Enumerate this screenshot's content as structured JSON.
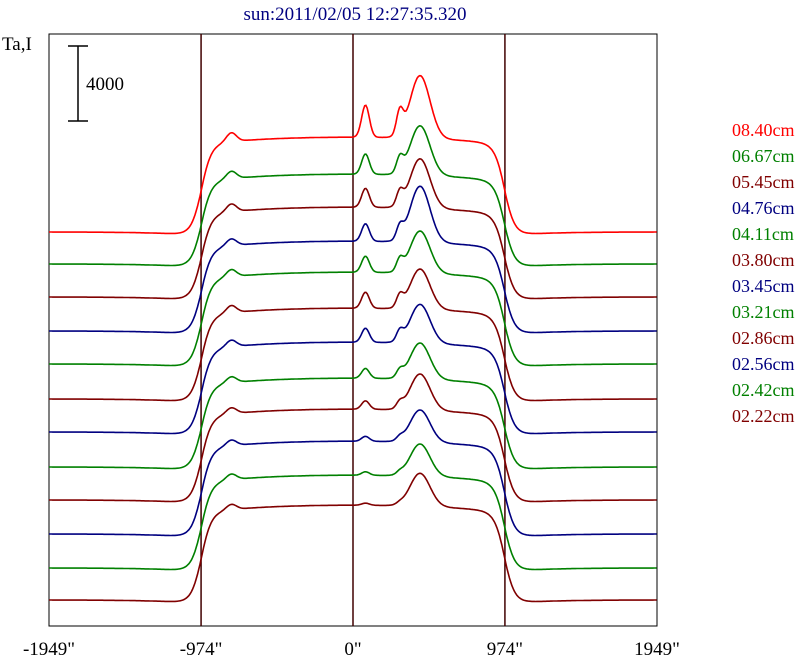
{
  "chart_data": {
    "type": "line",
    "title": "sun:2011/02/05 12:27:35.320",
    "ylabel": "Ta,I",
    "scale_bar_label": "4000",
    "scale_bar_value": 4000,
    "x_ticks": [
      {
        "value": -1949,
        "label": "-1949\""
      },
      {
        "value": -974,
        "label": "-974\""
      },
      {
        "value": 0,
        "label": "0\""
      },
      {
        "value": 974,
        "label": "974\""
      },
      {
        "value": 1949,
        "label": "1949\""
      }
    ],
    "xlim": [
      -1949,
      1949
    ],
    "vertical_lines": [
      -974,
      0,
      974
    ],
    "grid": false,
    "legend_position": "right",
    "series": [
      {
        "name": "08.40cm",
        "color": "#ff0000",
        "baseline": 238,
        "disk": 90,
        "bump": 92,
        "peak": 190,
        "kink": 60
      },
      {
        "name": "06.67cm",
        "color": "#008000",
        "baseline": 270,
        "disk": 85,
        "bump": 58,
        "peak": 150,
        "kink": 50
      },
      {
        "name": "05.45cm",
        "color": "#800000",
        "baseline": 303,
        "disk": 85,
        "bump": 54,
        "peak": 150,
        "kink": 52
      },
      {
        "name": "04.76cm",
        "color": "#000080",
        "baseline": 337,
        "disk": 85,
        "bump": 50,
        "peak": 170,
        "kink": 46
      },
      {
        "name": "04.11cm",
        "color": "#008000",
        "baseline": 370,
        "disk": 87,
        "bump": 46,
        "peak": 128,
        "kink": 48
      },
      {
        "name": "03.80cm",
        "color": "#800000",
        "baseline": 405,
        "disk": 86,
        "bump": 46,
        "peak": 122,
        "kink": 48
      },
      {
        "name": "03.45cm",
        "color": "#000080",
        "baseline": 438,
        "disk": 85,
        "bump": 40,
        "peak": 118,
        "kink": 44
      },
      {
        "name": "03.21cm",
        "color": "#008000",
        "baseline": 473,
        "disk": 84,
        "bump": 28,
        "peak": 110,
        "kink": 40
      },
      {
        "name": "02.86cm",
        "color": "#800000",
        "baseline": 506,
        "disk": 86,
        "bump": 24,
        "peak": 110,
        "kink": 40
      },
      {
        "name": "02.56cm",
        "color": "#000080",
        "baseline": 540,
        "disk": 88,
        "bump": 14,
        "peak": 98,
        "kink": 38
      },
      {
        "name": "02.42cm",
        "color": "#008000",
        "baseline": 574,
        "disk": 88,
        "bump": 10,
        "peak": 98,
        "kink": 38
      },
      {
        "name": "02.22cm",
        "color": "#800000",
        "baseline": 606,
        "disk": 90,
        "bump": 6,
        "peak": 100,
        "kink": 36
      }
    ]
  }
}
